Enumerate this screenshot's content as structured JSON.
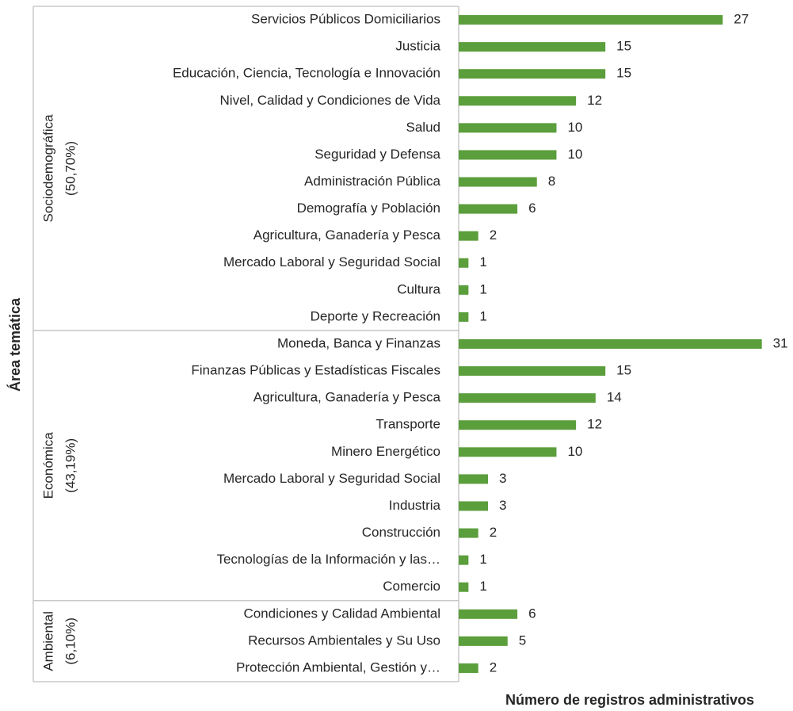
{
  "chart_data": {
    "type": "bar",
    "x_label": "Número de registros administrativos",
    "y_label": "Área temática",
    "color": "#5b9e3c",
    "xlim": [
      0,
      32
    ],
    "groups": [
      {
        "name": "Sociodemográfica",
        "share": "(50,70%)",
        "categories": [
          "Servicios Públicos Domiciliarios",
          "Justicia",
          "Educación, Ciencia, Tecnología e Innovación",
          "Nivel, Calidad y Condiciones de Vida",
          "Salud",
          "Seguridad y Defensa",
          "Administración Pública",
          "Demografía y Población",
          "Agricultura, Ganadería y Pesca",
          "Mercado Laboral y Seguridad Social",
          "Cultura",
          "Deporte y Recreación"
        ],
        "values": [
          27,
          15,
          15,
          12,
          10,
          10,
          8,
          6,
          2,
          1,
          1,
          1
        ]
      },
      {
        "name": "Económica",
        "share": "(43,19%)",
        "categories": [
          "Moneda, Banca y Finanzas",
          "Finanzas Públicas y Estadísticas Fiscales",
          "Agricultura, Ganadería y Pesca",
          "Transporte",
          "Minero Energético",
          "Mercado Laboral y Seguridad Social",
          "Industria",
          "Construcción",
          "Tecnologías de la Información y las…",
          "Comercio"
        ],
        "values": [
          31,
          15,
          14,
          12,
          10,
          3,
          3,
          2,
          1,
          1
        ]
      },
      {
        "name": "Ambiental",
        "share": "(6,10%)",
        "categories": [
          "Condiciones y Calidad Ambiental",
          "Recursos Ambientales y Su Uso",
          "Protección Ambiental, Gestión y…"
        ],
        "values": [
          6,
          5,
          2
        ]
      }
    ]
  }
}
